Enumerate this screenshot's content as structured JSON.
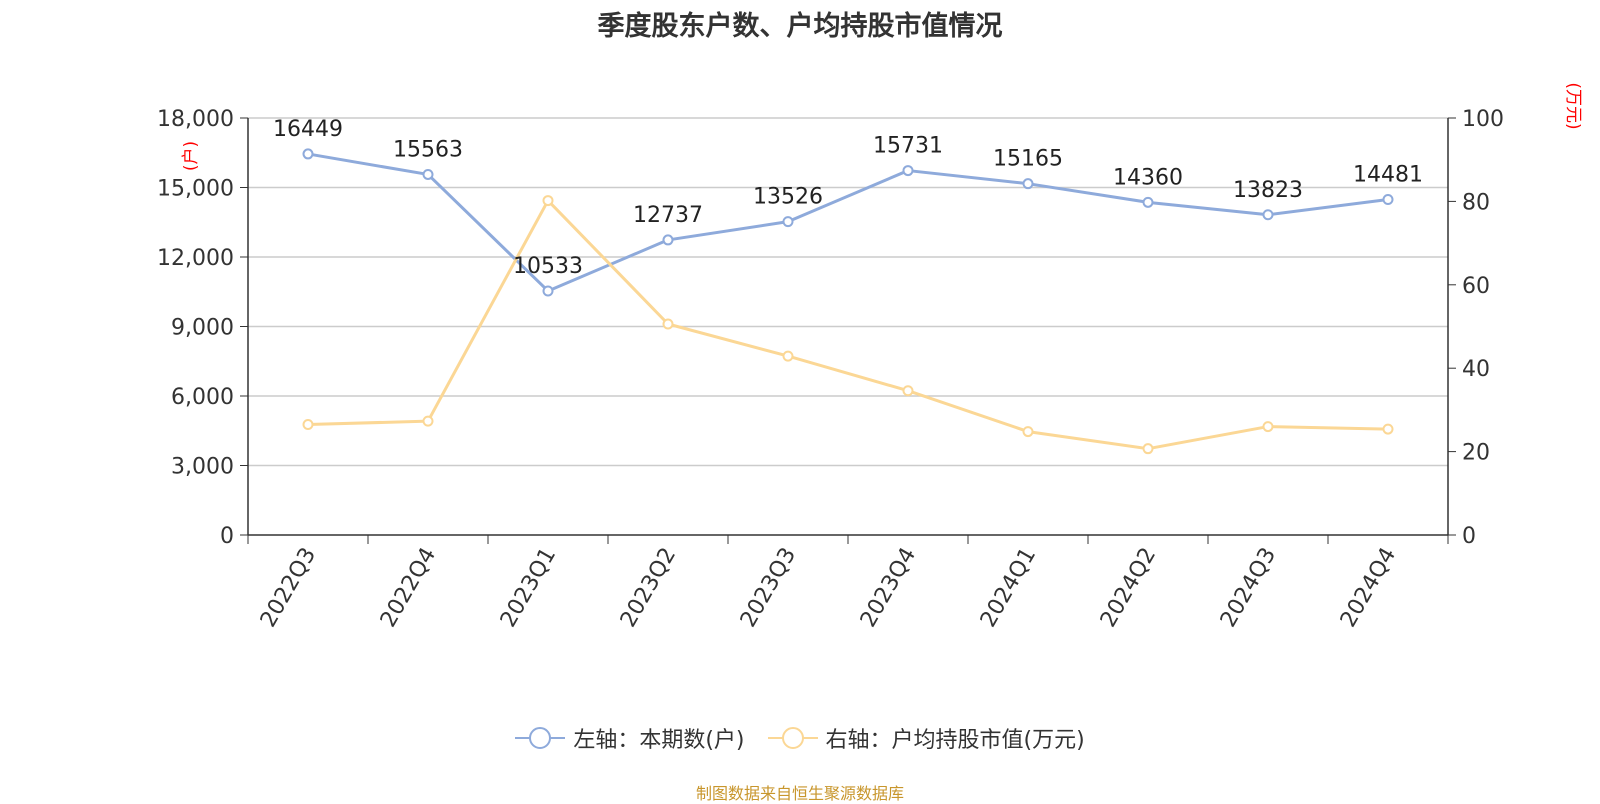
{
  "title": "季度股东户数、户均持股市值情况",
  "source": "制图数据来自恒生聚源数据库",
  "legend": {
    "left_series": "左轴：本期数(户)",
    "right_series": "右轴：户均持股市值(万元)"
  },
  "colors": {
    "left_series": "#8eaadb",
    "right_series": "#fbd795",
    "axis_unit_label": "#ff0000",
    "grid": "#cccccc",
    "axis": "#333333"
  },
  "chart_data": {
    "type": "line",
    "title": "季度股东户数、户均持股市值情况",
    "categories": [
      "2022Q3",
      "2022Q4",
      "2023Q1",
      "2023Q2",
      "2023Q3",
      "2023Q4",
      "2024Q1",
      "2024Q2",
      "2024Q3",
      "2024Q4"
    ],
    "left_axis": {
      "unit_label": "(户)",
      "ylim": [
        0,
        18000
      ],
      "ticks": [
        "0",
        "3,000",
        "6,000",
        "9,000",
        "12,000",
        "15,000",
        "18,000"
      ]
    },
    "right_axis": {
      "unit_label": "(万元)",
      "ylim": [
        0,
        100
      ],
      "ticks": [
        "0",
        "20",
        "40",
        "60",
        "80",
        "100"
      ]
    },
    "series": [
      {
        "name": "左轴：本期数(户)",
        "axis": "left",
        "values": [
          16449,
          15563,
          10533,
          12737,
          13526,
          15731,
          15165,
          14360,
          13823,
          14481
        ],
        "data_labels": [
          "16449",
          "15563",
          "10533",
          "12737",
          "13526",
          "15731",
          "15165",
          "14360",
          "13823",
          "14481"
        ]
      },
      {
        "name": "右轴：户均持股市值(万元)",
        "axis": "right",
        "values": [
          26.5,
          27.3,
          80.2,
          50.6,
          42.9,
          34.6,
          24.8,
          20.7,
          26.0,
          25.4
        ]
      }
    ],
    "grid": true,
    "legend_position": "bottom"
  }
}
